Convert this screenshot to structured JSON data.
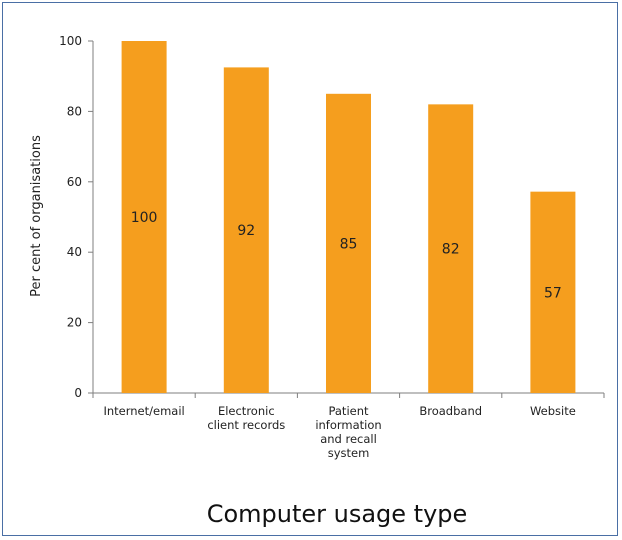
{
  "chart_data": {
    "type": "bar",
    "categories": [
      "Internet/email",
      "Electronic client records",
      "Patient information and recall system",
      "Broadband",
      "Website"
    ],
    "category_lines": [
      [
        "Internet/email"
      ],
      [
        "Electronic",
        "client records"
      ],
      [
        "Patient",
        "information",
        "and recall",
        "system"
      ],
      [
        "Broadband"
      ],
      [
        "Website"
      ]
    ],
    "values": [
      100,
      92,
      85,
      82,
      57
    ],
    "bar_heights": [
      100,
      92.5,
      85,
      82,
      57.2
    ],
    "data_labels": [
      "100",
      "92",
      "85",
      "82",
      "57"
    ],
    "title": "",
    "xlabel": "Computer usage type",
    "ylabel": "Per cent of organisations",
    "ylim": [
      0,
      100
    ],
    "yticks": [
      0,
      20,
      40,
      60,
      80,
      100
    ],
    "grid": false,
    "bar_color": "#F59E1E",
    "axis_color": "#7f7f7f"
  }
}
